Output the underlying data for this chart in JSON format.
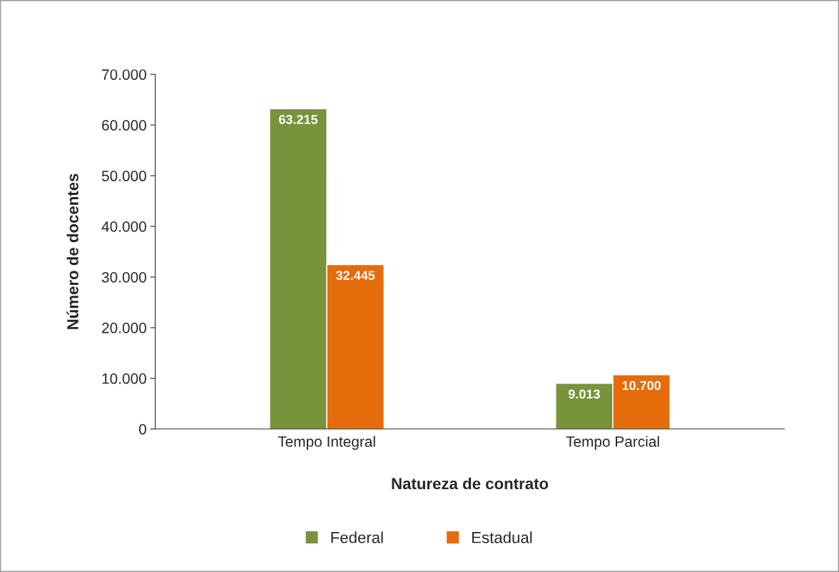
{
  "chart_data": {
    "type": "bar",
    "xlabel": "Natureza de contrato",
    "ylabel": "Número de docentes",
    "categories": [
      "Tempo Integral",
      "Tempo Parcial"
    ],
    "series": [
      {
        "name": "Federal",
        "color": "#77933c",
        "values": [
          63215,
          9013
        ],
        "value_labels": [
          "63.215",
          "9.013"
        ]
      },
      {
        "name": "Estadual",
        "color": "#e46c0a",
        "values": [
          32445,
          10700
        ],
        "value_labels": [
          "32.445",
          "10.700"
        ]
      }
    ],
    "ylim": [
      0,
      70000
    ],
    "yticks": [
      0,
      {
        "value": 10000,
        "label": "10.000"
      },
      {
        "value": 20000,
        "label": "20.000"
      },
      {
        "value": 30000,
        "label": "30.000"
      },
      {
        "value": 40000,
        "label": "40.000"
      },
      {
        "value": 50000,
        "label": "50.000"
      },
      {
        "value": 60000,
        "label": "60.000"
      },
      {
        "value": 70000,
        "label": "70.000"
      }
    ],
    "grid": false,
    "legend": "bottom"
  }
}
